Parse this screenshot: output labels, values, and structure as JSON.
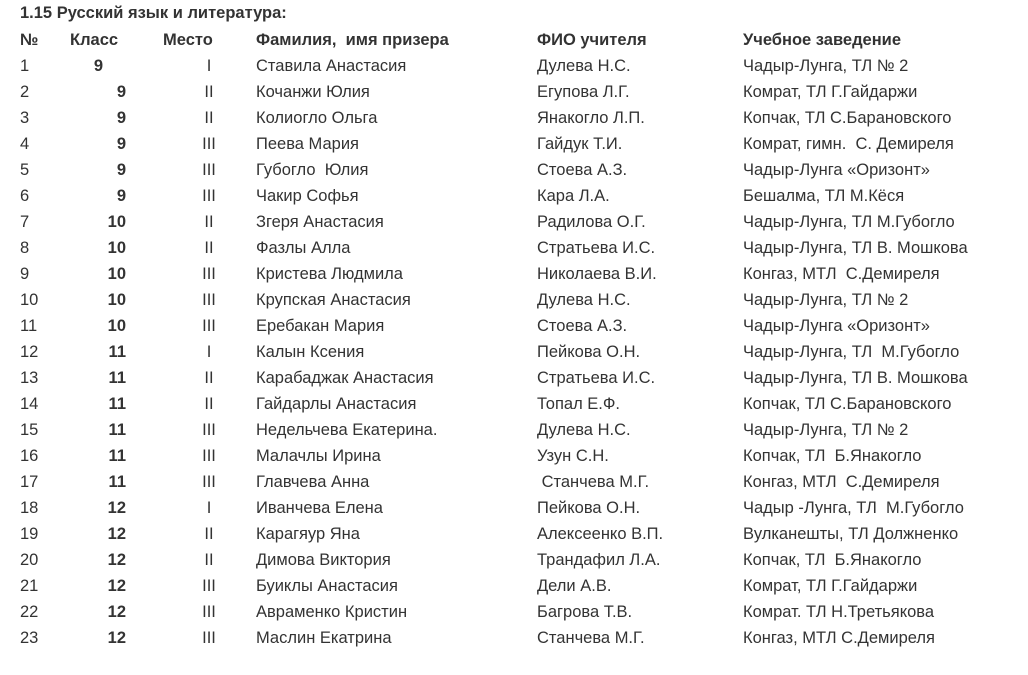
{
  "title": "1.15  Русский язык и литература:",
  "headers": {
    "num": "№",
    "class": "Класс",
    "place": "Место",
    "name": "Фамилия,  имя призера",
    "teacher": "ФИО учителя",
    "school": "Учебное заведение"
  },
  "rows": [
    {
      "num": "1",
      "class": "9",
      "place": "I",
      "name": "Ставила Анастасия",
      "teacher": "Дулева Н.С.",
      "school": "Чадыр-Лунга, ТЛ № 2"
    },
    {
      "num": "2",
      "class": "9",
      "place": "II",
      "name": "Кочанжи Юлия",
      "teacher": "Егупова Л.Г.",
      "school": "Комрат, ТЛ Г.Гайдаржи"
    },
    {
      "num": "3",
      "class": "9",
      "place": "II",
      "name": "Колиогло Ольга",
      "teacher": "Янакогло Л.П.",
      "school": "Копчак, ТЛ С.Барановского"
    },
    {
      "num": "4",
      "class": "9",
      "place": "III",
      "name": "Пеева Мария",
      "teacher": "Гайдук Т.И.",
      "school": "Комрат, гимн.  С. Демиреля"
    },
    {
      "num": "5",
      "class": "9",
      "place": "III",
      "name": "Губогло  Юлия",
      "teacher": "Стоева А.З.",
      "school": "Чадыр-Лунга «Оризонт»"
    },
    {
      "num": "6",
      "class": "9",
      "place": "III",
      "name": "Чакир Софья",
      "teacher": "Кара Л.А.",
      "school": "Бешалма, ТЛ М.Кёся"
    },
    {
      "num": "7",
      "class": "10",
      "place": "II",
      "name": "Згеря Анастасия",
      "teacher": "Радилова О.Г.",
      "school": "Чадыр-Лунга, ТЛ М.Губогло"
    },
    {
      "num": "8",
      "class": "10",
      "place": "II",
      "name": "Фазлы Алла",
      "teacher": "Стратьева И.С.",
      "school": "Чадыр-Лунга, ТЛ В. Мошкова"
    },
    {
      "num": "9",
      "class": "10",
      "place": "III",
      "name": "Кристева Людмила",
      "teacher": "Николаева В.И.",
      "school": "Конгаз, МТЛ  С.Демиреля"
    },
    {
      "num": "10",
      "class": "10",
      "place": "III",
      "name": "Крупская Анастасия",
      "teacher": "Дулева Н.С.",
      "school": "Чадыр-Лунга, ТЛ № 2"
    },
    {
      "num": "11",
      "class": "10",
      "place": "III",
      "name": "Еребакан Мария",
      "teacher": "Стоева А.З.",
      "school": "Чадыр-Лунга «Оризонт»"
    },
    {
      "num": "12",
      "class": "11",
      "place": "I",
      "name": "Калын Ксения",
      "teacher": "Пейкова О.Н.",
      "school": "Чадыр-Лунга, ТЛ  М.Губогло"
    },
    {
      "num": "13",
      "class": "11",
      "place": "II",
      "name": "Карабаджак Анастасия",
      "teacher": "Стратьева И.С.",
      "school": "Чадыр-Лунга, ТЛ В. Мошкова"
    },
    {
      "num": "14",
      "class": "11",
      "place": "II",
      "name": "Гайдарлы Анастасия",
      "teacher": "Топал Е.Ф.",
      "school": "Копчак, ТЛ С.Барановского"
    },
    {
      "num": "15",
      "class": "11",
      "place": "III",
      "name": "Недельчева Екатерина.",
      "teacher": "Дулева Н.С.",
      "school": "Чадыр-Лунга, ТЛ № 2"
    },
    {
      "num": "16",
      "class": "11",
      "place": "III",
      "name": "Малачлы Ирина",
      "teacher": "Узун С.Н.",
      "school": "Копчак, ТЛ  Б.Янакогло"
    },
    {
      "num": "17",
      "class": "11",
      "place": "III",
      "name": "Главчева Анна",
      "teacher": " Станчева М.Г.",
      "school": "Конгаз, МТЛ  С.Демиреля"
    },
    {
      "num": "18",
      "class": "12",
      "place": "I",
      "name": "Иванчева Елена",
      "teacher": "Пейкова О.Н.",
      "school": "Чадыр -Лунга, ТЛ  М.Губогло"
    },
    {
      "num": "19",
      "class": "12",
      "place": "II",
      "name": "Карагяур Яна",
      "teacher": "Алексеенко В.П.",
      "school": "Вулканешты, ТЛ Должненко"
    },
    {
      "num": "20",
      "class": "12",
      "place": "II",
      "name": "Димова Виктория",
      "teacher": "Трандафил Л.А.",
      "school": "Копчак, ТЛ  Б.Янакогло"
    },
    {
      "num": "21",
      "class": "12",
      "place": "III",
      "name": "Буиклы Анастасия",
      "teacher": "Дели А.В.",
      "school": "Комрат, ТЛ Г.Гайдаржи"
    },
    {
      "num": "22",
      "class": "12",
      "place": "III",
      "name": "Авраменко Кристин",
      "teacher": "Багрова Т.В.",
      "school": "Комрат. ТЛ Н.Третьякова"
    },
    {
      "num": "23",
      "class": "12",
      "place": "III",
      "name": "Маслин Екатрина",
      "teacher": "Станчева М.Г.",
      "school": "Конгаз, МТЛ С.Демиреля"
    }
  ]
}
